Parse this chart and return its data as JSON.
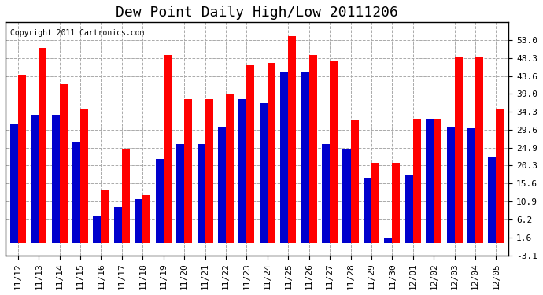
{
  "title": "Dew Point Daily High/Low 20111206",
  "copyright": "Copyright 2011 Cartronics.com",
  "categories": [
    "11/12",
    "11/13",
    "11/14",
    "11/15",
    "11/16",
    "11/17",
    "11/18",
    "11/19",
    "11/20",
    "11/21",
    "11/22",
    "11/23",
    "11/24",
    "11/25",
    "11/26",
    "11/27",
    "11/28",
    "11/29",
    "11/30",
    "12/01",
    "12/02",
    "12/03",
    "12/04",
    "12/05"
  ],
  "high": [
    44.0,
    51.0,
    41.5,
    35.0,
    14.0,
    24.5,
    12.5,
    49.0,
    37.5,
    37.5,
    39.0,
    46.5,
    47.0,
    54.0,
    49.0,
    47.5,
    32.0,
    21.0,
    21.0,
    32.5,
    32.5,
    48.5,
    48.5,
    35.0
  ],
  "low": [
    31.0,
    33.5,
    33.5,
    26.5,
    7.0,
    9.5,
    11.5,
    22.0,
    26.0,
    26.0,
    30.5,
    37.5,
    36.5,
    44.5,
    44.5,
    26.0,
    24.5,
    17.0,
    1.5,
    18.0,
    32.5,
    30.5,
    30.0,
    22.5
  ],
  "ylim": [
    -3.1,
    57.7
  ],
  "yticks": [
    -3.1,
    1.6,
    6.2,
    10.9,
    15.6,
    20.3,
    24.9,
    29.6,
    34.3,
    39.0,
    43.6,
    48.3,
    53.0
  ],
  "high_color": "#ff0000",
  "low_color": "#0000cc",
  "bg_color": "#ffffff",
  "grid_color": "#aaaaaa",
  "bar_width": 0.38,
  "title_fontsize": 13,
  "tick_fontsize": 8,
  "copyright_fontsize": 7
}
